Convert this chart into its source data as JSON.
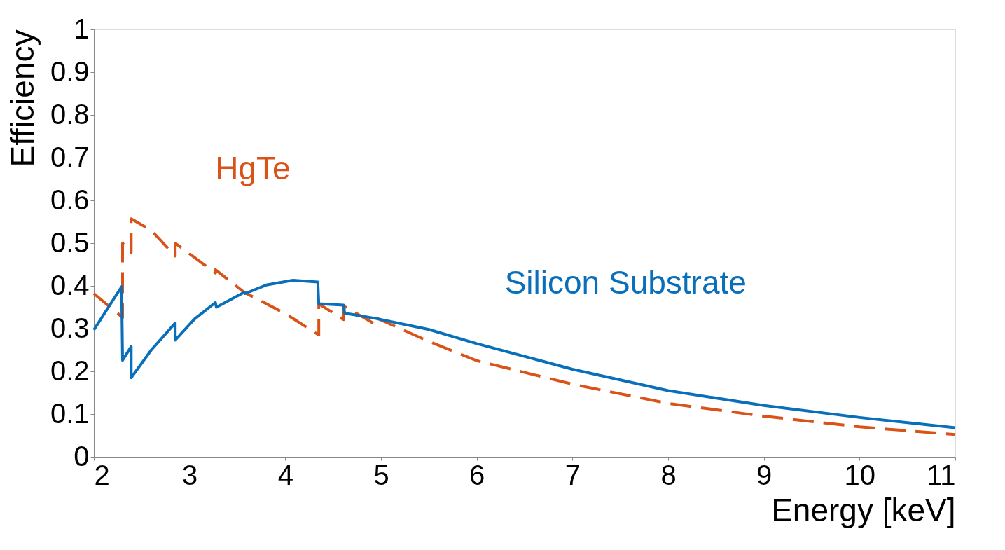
{
  "chart_data": {
    "type": "line",
    "xlabel": "Energy [keV]",
    "ylabel": "Efficiency",
    "xlim": [
      2,
      11
    ],
    "ylim": [
      0,
      1
    ],
    "xticks": [
      2,
      3,
      4,
      5,
      6,
      7,
      8,
      9,
      10,
      11
    ],
    "yticks": [
      0,
      0.1,
      0.2,
      0.3,
      0.4,
      0.5,
      0.6,
      0.7,
      0.8,
      0.9,
      1
    ],
    "grid": false,
    "series": [
      {
        "name": "HgTe",
        "color": "#d95319",
        "line_style": "dashed",
        "x": [
          2,
          2.3,
          2.3,
          2.39,
          2.39,
          2.6,
          2.85,
          2.85,
          3.27,
          3.27,
          3.57,
          4.0,
          4.35,
          4.35,
          4.61,
          4.61,
          4.94,
          4.94,
          5.5,
          6,
          7,
          8,
          9,
          10,
          11
        ],
        "values": [
          0.382,
          0.326,
          0.5,
          0.478,
          0.557,
          0.53,
          0.47,
          0.5,
          0.43,
          0.438,
          0.385,
          0.335,
          0.285,
          0.358,
          0.321,
          0.353,
          0.31,
          0.326,
          0.27,
          0.225,
          0.17,
          0.125,
          0.095,
          0.07,
          0.052
        ]
      },
      {
        "name": "Silicon Substrate",
        "color": "#0a6fba",
        "line_style": "solid",
        "x": [
          2,
          2.29,
          2.3,
          2.39,
          2.39,
          2.6,
          2.85,
          2.85,
          3.05,
          3.27,
          3.28,
          3.57,
          3.58,
          3.8,
          4.08,
          4.34,
          4.35,
          4.61,
          4.62,
          4.94,
          5.5,
          6,
          7,
          8,
          9,
          10,
          11
        ],
        "values": [
          0.297,
          0.398,
          0.226,
          0.258,
          0.185,
          0.25,
          0.313,
          0.273,
          0.322,
          0.361,
          0.35,
          0.385,
          0.382,
          0.402,
          0.413,
          0.409,
          0.358,
          0.355,
          0.336,
          0.324,
          0.298,
          0.265,
          0.205,
          0.155,
          0.12,
          0.092,
          0.068
        ]
      }
    ]
  }
}
